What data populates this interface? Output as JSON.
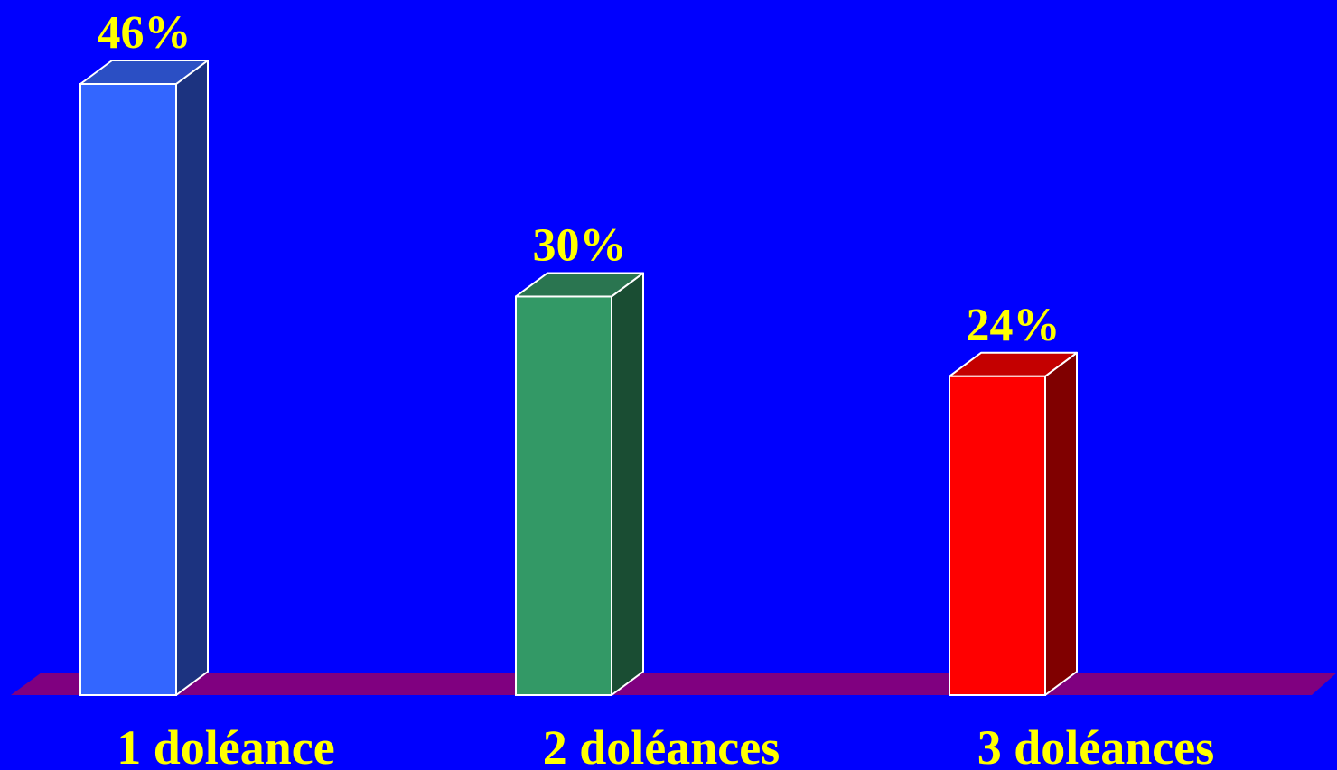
{
  "chart_data": {
    "type": "bar",
    "categories": [
      "1 doléance",
      "2 doléances",
      "3 doléances"
    ],
    "values": [
      46,
      30,
      24
    ],
    "value_labels": [
      "46%",
      "30%",
      "24%"
    ],
    "unit": "%",
    "ylim": [
      0,
      46
    ],
    "three_d": true,
    "grid": false,
    "legend": "none",
    "colors": {
      "background": "#0000fe",
      "floor": "#800080",
      "label_text": "#ffff00",
      "bar_outline": "#ffffff",
      "bars": [
        {
          "front": "#3366ff",
          "side": "#1c3380",
          "top": "#2b4fc4"
        },
        {
          "front": "#339966",
          "side": "#1a4d33",
          "top": "#2a7550"
        },
        {
          "front": "#ff0000",
          "side": "#800000",
          "top": "#c40000"
        }
      ]
    }
  }
}
